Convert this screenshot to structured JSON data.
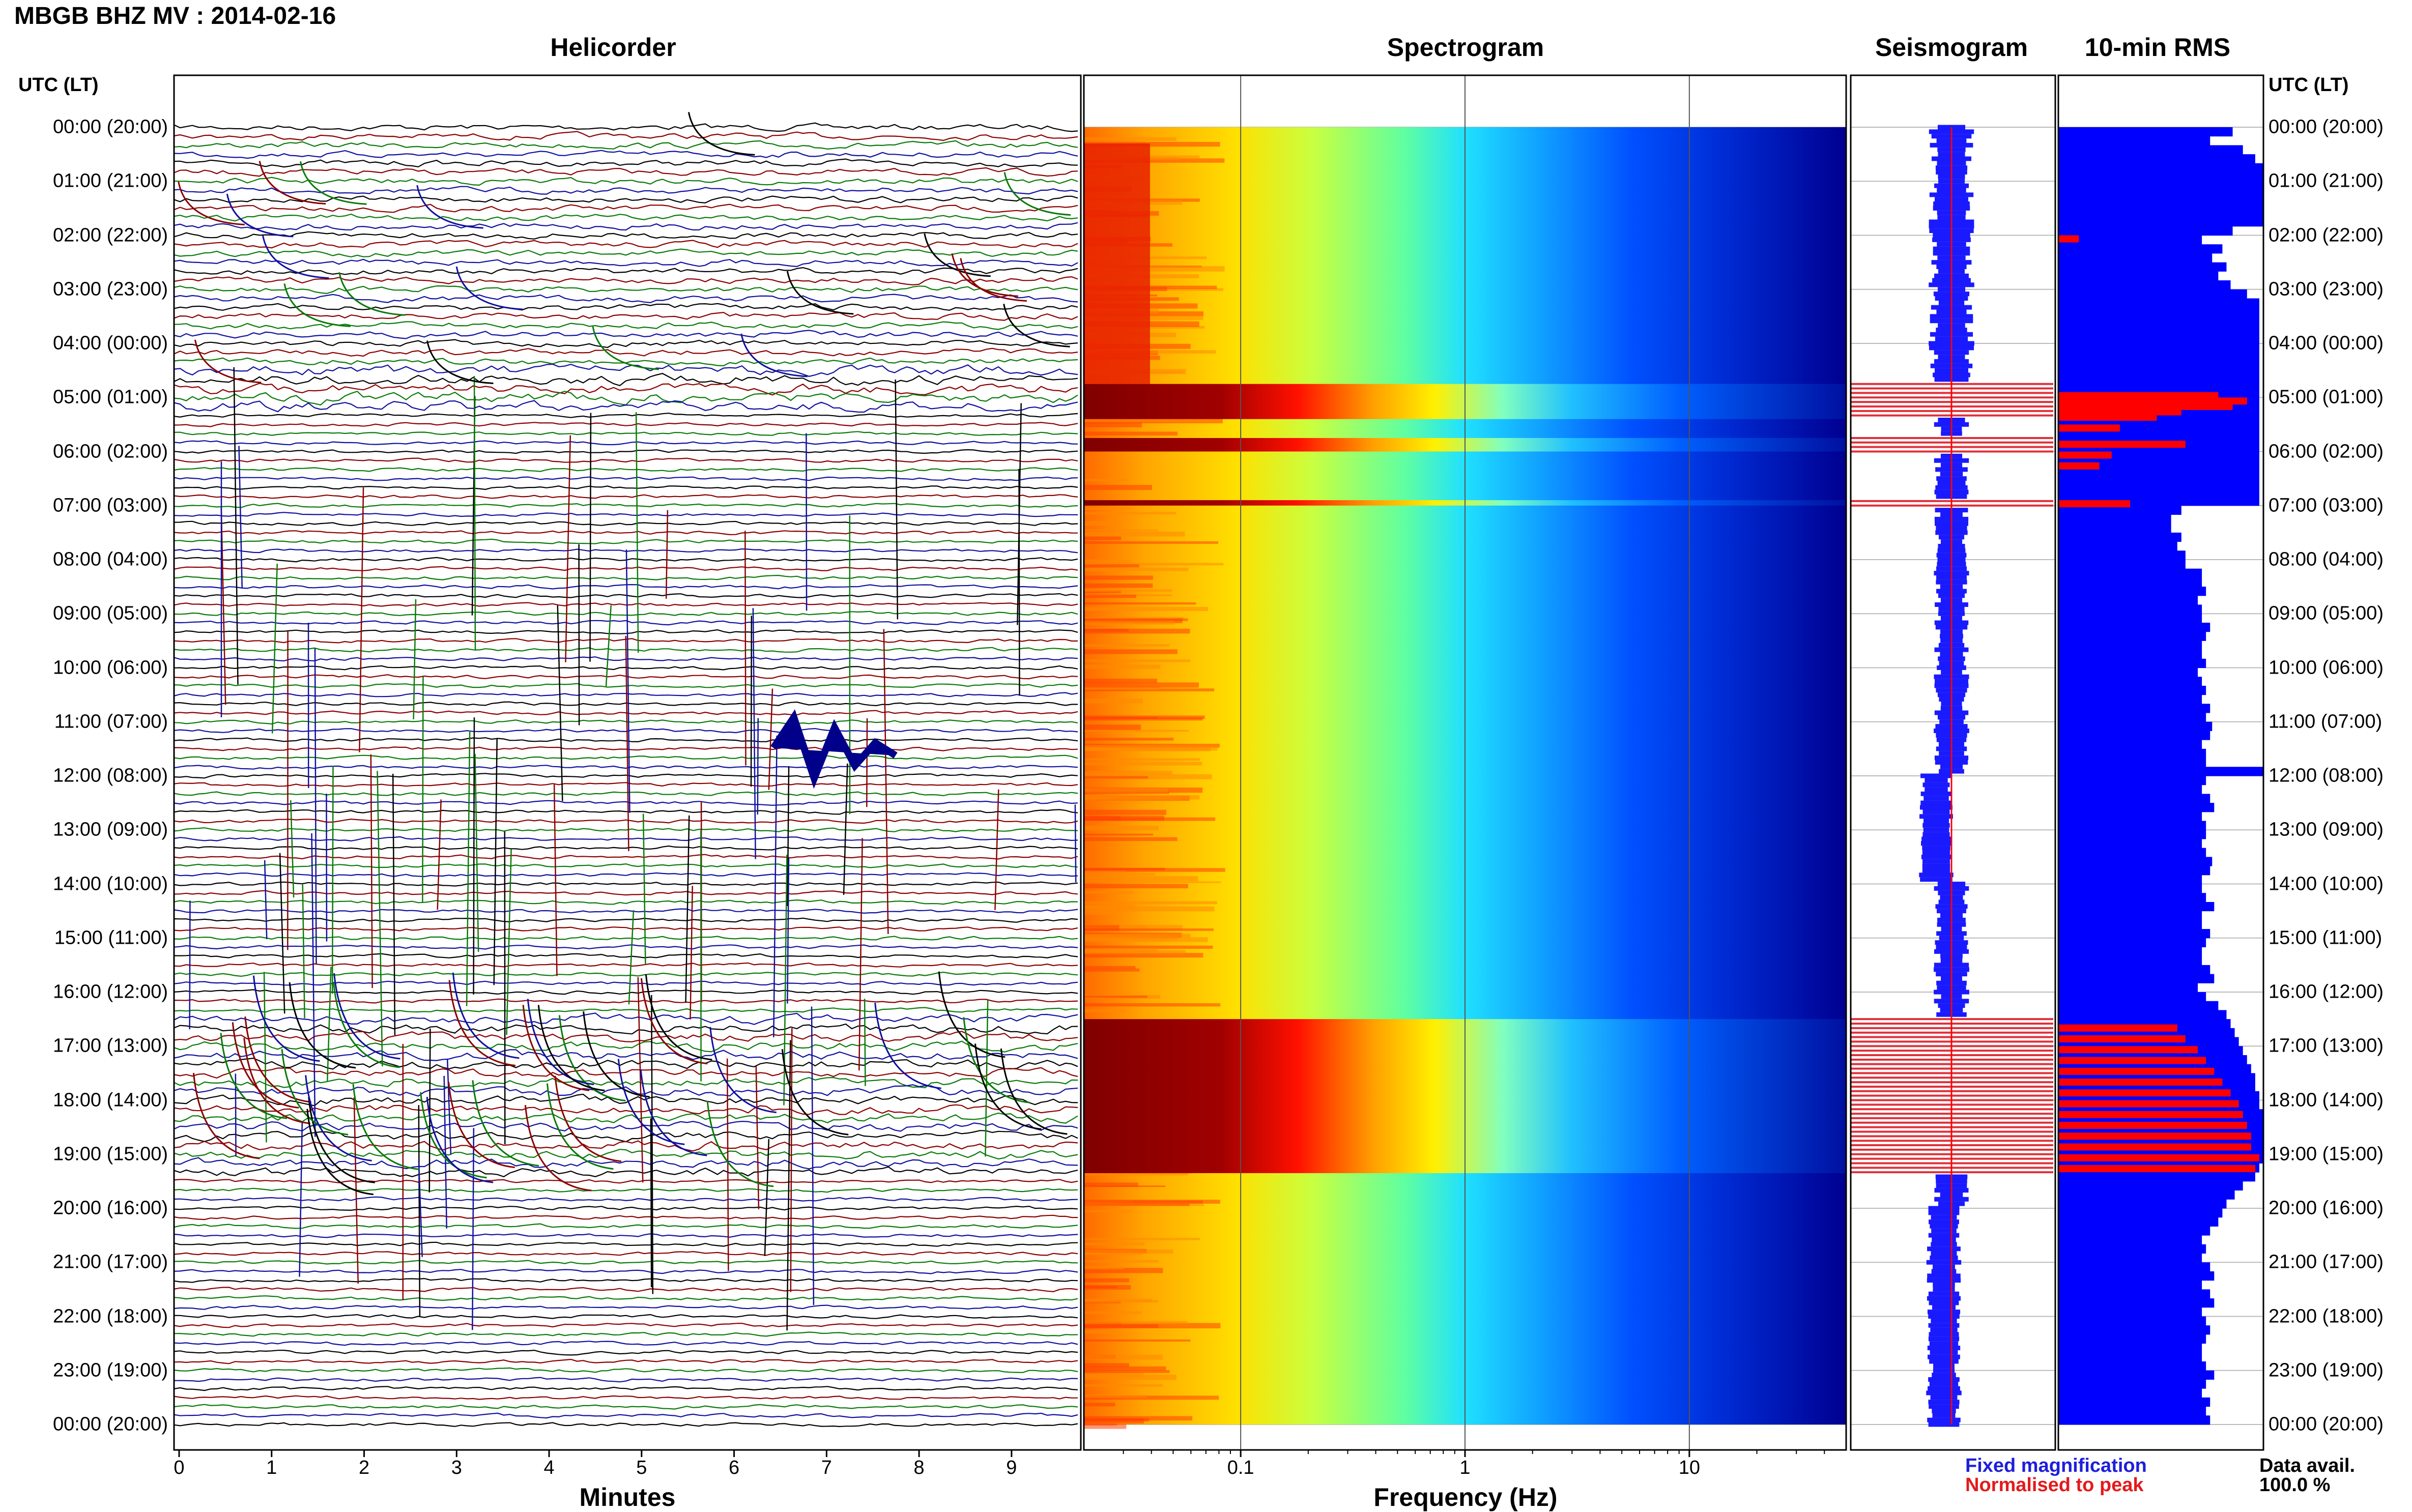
{
  "header": {
    "title": "MBGB BHZ MV : 2014-02-16",
    "utc_label": "UTC (LT)"
  },
  "panels": {
    "helicorder": "Helicorder",
    "spectrogram": "Spectrogram",
    "seismogram": "Seismogram",
    "rms": "10-min RMS"
  },
  "axes": {
    "minutes_title": "Minutes",
    "frequency_title": "Frequency (Hz)",
    "minutes_ticks": [
      "0",
      "1",
      "2",
      "3",
      "4",
      "5",
      "6",
      "7",
      "8",
      "9"
    ],
    "frequency_ticks": [
      "0.1",
      "1",
      "10"
    ]
  },
  "legend": {
    "fixed": "Fixed magnification",
    "normalised": "Normalised to peak",
    "fixed_color": "#1e1edc",
    "normalised_color": "#e31a1c",
    "data_avail_label": "Data avail.",
    "data_avail_value": "100.0 %"
  },
  "colors": {
    "trace": [
      "#000000",
      "#8b0000",
      "#0a7a0a",
      "#1010a0"
    ],
    "rms_fixed": "#0000ff",
    "rms_norm": "#ff0000"
  },
  "chart_data": [
    {
      "type": "line",
      "title": "Helicorder",
      "xlabel": "Minutes",
      "ylabel": "UTC (LT)",
      "xlim": [
        0,
        10
      ],
      "y_ticks": [
        "00:00 (20:00)",
        "01:00 (21:00)",
        "02:00 (22:00)",
        "03:00 (23:00)",
        "04:00 (00:00)",
        "05:00 (01:00)",
        "06:00 (02:00)",
        "07:00 (03:00)",
        "08:00 (04:00)",
        "09:00 (05:00)",
        "10:00 (06:00)",
        "11:00 (07:00)",
        "12:00 (08:00)",
        "13:00 (09:00)",
        "14:00 (10:00)",
        "15:00 (11:00)",
        "16:00 (12:00)",
        "17:00 (13:00)",
        "18:00 (14:00)",
        "19:00 (15:00)",
        "20:00 (16:00)",
        "21:00 (17:00)",
        "22:00 (18:00)",
        "23:00 (19:00)",
        "00:00 (20:00)"
      ],
      "lines_per_hour": 6,
      "series_colors": [
        "black",
        "dark red",
        "green",
        "blue"
      ]
    },
    {
      "type": "heatmap",
      "title": "Spectrogram",
      "xlabel": "Frequency (Hz)",
      "x_scale": "log",
      "xlim": [
        0.02,
        50
      ],
      "colormap": "jet",
      "high_energy_hours": [
        [
          4.75,
          5.4
        ],
        [
          5.75,
          6.0
        ],
        [
          6.9,
          7.0
        ],
        [
          16.5,
          19.35
        ]
      ]
    },
    {
      "type": "bar",
      "title": "10-min RMS",
      "series": [
        {
          "name": "Fixed magnification",
          "values": [
            0.85,
            0.74,
            0.9,
            0.96,
            1.0,
            1.0,
            1.0,
            1.0,
            1.0,
            1.0,
            1.0,
            0.85,
            0.7,
            0.8,
            0.75,
            0.82,
            0.78,
            0.84,
            0.92,
            0.98,
            0.98,
            0.98,
            0.98,
            0.98,
            0.98,
            0.98,
            0.98,
            0.98,
            0.98,
            0.98,
            0.98,
            0.98,
            0.98,
            0.98,
            0.98,
            0.98,
            0.98,
            0.98,
            0.98,
            0.98,
            0.98,
            0.98,
            0.6,
            0.55,
            0.55,
            0.6,
            0.58,
            0.62,
            0.62,
            0.7,
            0.7,
            0.72,
            0.68,
            0.7,
            0.7,
            0.74,
            0.72,
            0.7,
            0.7,
            0.72,
            0.68,
            0.7,
            0.72,
            0.7,
            0.74,
            0.72,
            0.75,
            0.74,
            0.7,
            0.72,
            0.72,
            1.0,
            0.72,
            0.7,
            0.74,
            0.76,
            0.7,
            0.72,
            0.72,
            0.7,
            0.72,
            0.75,
            0.74,
            0.7,
            0.7,
            0.72,
            0.76,
            0.7,
            0.7,
            0.74,
            0.72,
            0.7,
            0.7,
            0.74,
            0.76,
            0.68,
            0.72,
            0.78,
            0.82,
            0.84,
            0.86,
            0.88,
            0.9,
            0.92,
            0.94,
            0.96,
            0.96,
            0.98,
            0.98,
            1.0,
            1.0,
            1.0,
            1.0,
            1.0,
            1.0,
            0.98,
            0.96,
            0.9,
            0.86,
            0.82,
            0.8,
            0.78,
            0.74,
            0.7,
            0.72,
            0.7,
            0.74,
            0.76,
            0.7,
            0.74,
            0.76,
            0.7,
            0.72,
            0.74,
            0.72,
            0.7,
            0.7,
            0.72,
            0.76,
            0.72,
            0.7,
            0.74,
            0.72,
            0.74
          ]
        },
        {
          "name": "Normalised to peak",
          "hours_marked": [
            2.0,
            4.9,
            5.0,
            5.1,
            5.2,
            5.3,
            5.5,
            5.8,
            6.0,
            6.2,
            6.9,
            16.6,
            16.8,
            17.0,
            17.2,
            17.4,
            17.6,
            17.8,
            18.0,
            18.2,
            18.4,
            18.6,
            18.8,
            19.0,
            19.2
          ],
          "values": [
            0.1,
            0.78,
            0.92,
            0.85,
            0.6,
            0.48,
            0.3,
            0.62,
            0.26,
            0.2,
            0.35,
            0.58,
            0.62,
            0.68,
            0.72,
            0.76,
            0.8,
            0.84,
            0.88,
            0.9,
            0.92,
            0.94,
            0.94,
            0.98,
            0.96
          ]
        }
      ]
    }
  ]
}
